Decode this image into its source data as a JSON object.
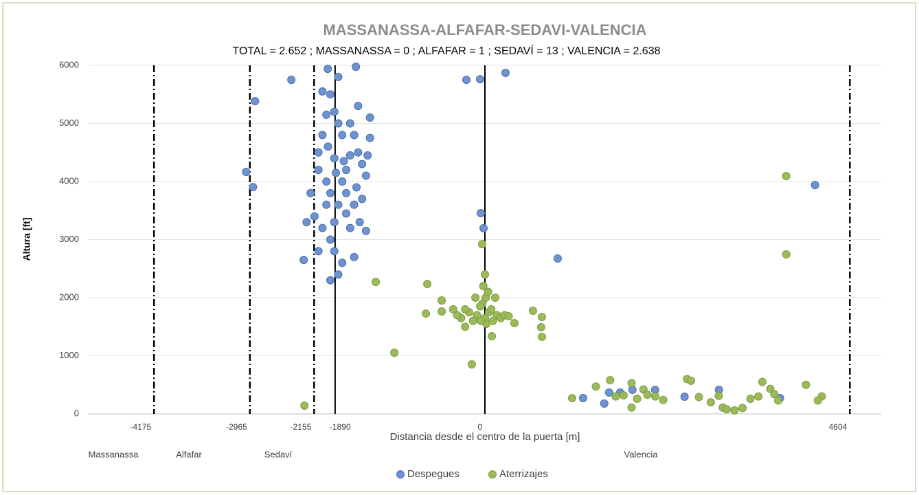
{
  "chart_data": {
    "type": "scatter",
    "title": "MASSANASSA-ALFAFAR-SEDAVI-VALENCIA",
    "subtitle": "TOTAL = 2.652 ; MASSANASSA =  0 ; ALFAFAR =  1 ; SEDAVÍ = 13 ; VALENCIA = 2.638",
    "x_label": "Distancia desde el centro de la puerta [m]",
    "y_label": "Altura [ft]",
    "regions": [
      "Massanassa",
      "Alfafar",
      "Sedaví",
      "Valencia"
    ],
    "xlim": [
      -5000,
      5000
    ],
    "ylim": [
      0,
      6000
    ],
    "xticks": [
      -4175,
      -2965,
      -2155,
      -1890,
      0,
      4604
    ],
    "vline_styles": [
      "dashdot",
      "dashdot",
      "dashdot",
      "solid",
      "solid",
      "dashdot"
    ],
    "yticks": [
      0,
      1000,
      2000,
      3000,
      4000,
      5000,
      6000
    ],
    "grid": true,
    "legend": "bottom",
    "series": [
      {
        "name": "Despegues",
        "color": "#6f93cf",
        "x": [
          -2900,
          -2442,
          -3013,
          -2926,
          -2286,
          -1983,
          -1628,
          -234,
          -61,
          260,
          -52,
          -17,
          918,
          4165,
          1238,
          1506,
          1567,
          1706,
          1861,
          2147,
          2519,
          2952,
          3723,
          -2050,
          -1980,
          -1900,
          -2100,
          -2000,
          -1950,
          -1850,
          -2150,
          -2050,
          -1950,
          -1900,
          -1800,
          -1850,
          -1950,
          -1700,
          -1650,
          -1600,
          -1550,
          -1500,
          -1620,
          -1580,
          -1500,
          -1700,
          -1750,
          -1800,
          -1750,
          -1700,
          -1850,
          -1900,
          -1950,
          -1850,
          -2050,
          -1600,
          -1450,
          -1450,
          -1480,
          -2200,
          -2250,
          -2100,
          -1650,
          -2000,
          -1800,
          -2100,
          -1900,
          -1750,
          -1650,
          -1550,
          -2000,
          -1780,
          -1880
        ],
        "values": [
          5383,
          5750,
          4164,
          3904,
          2650,
          5940,
          5975,
          5750,
          5760,
          5870,
          3455,
          3195,
          2674,
          3940,
          272,
          177,
          367,
          367,
          414,
          414,
          296,
          414,
          272,
          4800,
          4600,
          4400,
          4200,
          4000,
          3800,
          3600,
          3400,
          3200,
          3000,
          2800,
          2600,
          2400,
          2300,
          5000,
          4800,
          4500,
          4300,
          4100,
          3900,
          3300,
          3150,
          3200,
          3450,
          4000,
          4200,
          4450,
          5000,
          5200,
          5500,
          5800,
          5550,
          5300,
          5100,
          4750,
          4450,
          3800,
          3300,
          2800,
          2700,
          3600,
          4800,
          4500,
          3300,
          3800,
          3600,
          3700,
          5150,
          4350,
          4150
        ]
      },
      {
        "name": "Aterrizajes",
        "color": "#9bbb59",
        "x": [
          -1377,
          -1143,
          -2277,
          -727,
          -745,
          -545,
          -545,
          -165,
          -35,
          87,
          372,
          606,
          719,
          710,
          719,
          3801,
          3801,
          -100,
          0,
          50,
          -50,
          20,
          80,
          -30,
          10,
          40,
          -20,
          0,
          -60,
          100,
          150,
          200,
          250,
          -150,
          -200,
          -250,
          -300,
          -350,
          -400,
          -250,
          130,
          -120,
          300,
          1100,
          1400,
          1580,
          1750,
          1850,
          1920,
          2000,
          2050,
          2250,
          2550,
          2600,
          2700,
          2850,
          2950,
          3000,
          3050,
          3150,
          3250,
          3350,
          3500,
          3600,
          3650,
          3700,
          4050,
          4250,
          4200,
          1850,
          2150,
          3450,
          1650
        ],
        "values": [
          2272,
          1053,
          142,
          2236,
          1727,
          1952,
          1763,
          852,
          2922,
          1337,
          1562,
          1775,
          1668,
          1491,
          1325,
          2745,
          4093,
          1700,
          1650,
          1750,
          1600,
          1550,
          1800,
          1900,
          2000,
          2100,
          2200,
          2400,
          1850,
          1600,
          1700,
          1650,
          1700,
          1600,
          1750,
          1800,
          1650,
          1700,
          1800,
          1500,
          2000,
          2000,
          1680,
          270,
          470,
          580,
          320,
          530,
          260,
          420,
          330,
          240,
          600,
          570,
          290,
          200,
          310,
          110,
          80,
          60,
          100,
          260,
          550,
          430,
          340,
          230,
          500,
          300,
          230,
          110,
          300,
          300,
          300
        ]
      }
    ]
  }
}
